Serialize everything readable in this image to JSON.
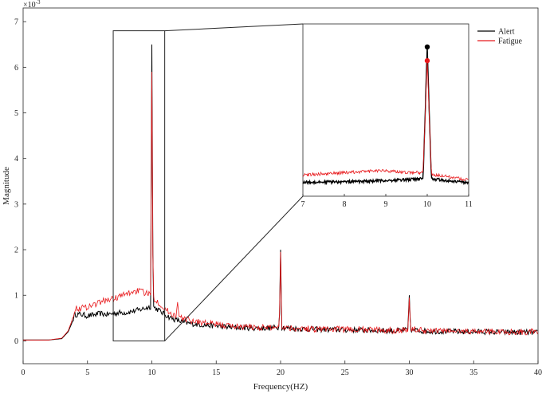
{
  "chart_data": {
    "type": "line",
    "xlabel": "Frequency(HZ)",
    "ylabel": "Magnitude",
    "exponent_label": "×10",
    "exponent_power": "-3",
    "xlim": [
      0,
      40
    ],
    "ylim": [
      -0.5,
      7.3
    ],
    "xticks": [
      0,
      5,
      10,
      15,
      20,
      25,
      30,
      35,
      40
    ],
    "yticks": [
      0,
      1,
      2,
      3,
      4,
      5,
      6,
      7
    ],
    "legend": {
      "placement": "top-right"
    },
    "grid": false,
    "series": [
      {
        "name": "Alert",
        "color": "#000000",
        "points": [
          [
            0,
            0.02
          ],
          [
            1,
            0.02
          ],
          [
            2,
            0.02
          ],
          [
            3,
            0.05
          ],
          [
            3.5,
            0.2
          ],
          [
            3.8,
            0.4
          ],
          [
            4.0,
            0.58
          ],
          [
            4.5,
            0.58
          ],
          [
            5,
            0.55
          ],
          [
            5.5,
            0.57
          ],
          [
            6,
            0.6
          ],
          [
            6.5,
            0.58
          ],
          [
            7,
            0.6
          ],
          [
            7.5,
            0.62
          ],
          [
            8,
            0.62
          ],
          [
            8.5,
            0.65
          ],
          [
            9,
            0.68
          ],
          [
            9.5,
            0.72
          ],
          [
            9.9,
            0.75
          ],
          [
            10.0,
            6.5
          ],
          [
            10.1,
            0.75
          ],
          [
            10.5,
            0.68
          ],
          [
            11,
            0.58
          ],
          [
            11.5,
            0.5
          ],
          [
            12,
            0.45
          ],
          [
            12.5,
            0.4
          ],
          [
            13,
            0.38
          ],
          [
            14,
            0.35
          ],
          [
            15,
            0.33
          ],
          [
            16,
            0.3
          ],
          [
            17,
            0.29
          ],
          [
            18,
            0.28
          ],
          [
            19,
            0.28
          ],
          [
            19.9,
            0.3
          ],
          [
            20.0,
            2.0
          ],
          [
            20.1,
            0.3
          ],
          [
            21,
            0.27
          ],
          [
            22,
            0.26
          ],
          [
            23,
            0.25
          ],
          [
            24,
            0.25
          ],
          [
            25,
            0.24
          ],
          [
            26,
            0.24
          ],
          [
            27,
            0.23
          ],
          [
            28,
            0.23
          ],
          [
            29,
            0.22
          ],
          [
            29.9,
            0.24
          ],
          [
            30.0,
            1.0
          ],
          [
            30.1,
            0.24
          ],
          [
            31,
            0.22
          ],
          [
            32,
            0.21
          ],
          [
            33,
            0.21
          ],
          [
            34,
            0.2
          ],
          [
            35,
            0.2
          ],
          [
            36,
            0.2
          ],
          [
            37,
            0.19
          ],
          [
            38,
            0.19
          ],
          [
            39,
            0.19
          ],
          [
            40,
            0.18
          ]
        ]
      },
      {
        "name": "Fatigue",
        "color": "#e8191c",
        "points": [
          [
            0,
            0.02
          ],
          [
            1,
            0.02
          ],
          [
            2,
            0.02
          ],
          [
            3,
            0.06
          ],
          [
            3.5,
            0.22
          ],
          [
            3.8,
            0.45
          ],
          [
            4.0,
            0.7
          ],
          [
            4.5,
            0.72
          ],
          [
            5,
            0.75
          ],
          [
            5.5,
            0.8
          ],
          [
            6,
            0.85
          ],
          [
            6.5,
            0.9
          ],
          [
            7,
            0.92
          ],
          [
            7.5,
            0.98
          ],
          [
            8,
            1.02
          ],
          [
            8.5,
            1.08
          ],
          [
            9,
            1.1
          ],
          [
            9.5,
            1.05
          ],
          [
            9.9,
            1.0
          ],
          [
            10.0,
            5.9
          ],
          [
            10.1,
            0.95
          ],
          [
            10.5,
            0.85
          ],
          [
            11,
            0.7
          ],
          [
            11.5,
            0.6
          ],
          [
            11.9,
            0.55
          ],
          [
            12.0,
            0.85
          ],
          [
            12.1,
            0.52
          ],
          [
            12.5,
            0.48
          ],
          [
            13,
            0.45
          ],
          [
            14,
            0.4
          ],
          [
            15,
            0.36
          ],
          [
            16,
            0.33
          ],
          [
            17,
            0.31
          ],
          [
            18,
            0.3
          ],
          [
            19,
            0.29
          ],
          [
            19.9,
            0.31
          ],
          [
            20.0,
            1.95
          ],
          [
            20.1,
            0.31
          ],
          [
            21,
            0.28
          ],
          [
            22,
            0.27
          ],
          [
            23,
            0.26
          ],
          [
            24,
            0.26
          ],
          [
            25,
            0.25
          ],
          [
            26,
            0.25
          ],
          [
            27,
            0.24
          ],
          [
            28,
            0.24
          ],
          [
            29,
            0.23
          ],
          [
            29.9,
            0.25
          ],
          [
            30.0,
            0.95
          ],
          [
            30.1,
            0.25
          ],
          [
            31,
            0.23
          ],
          [
            32,
            0.22
          ],
          [
            33,
            0.22
          ],
          [
            34,
            0.21
          ],
          [
            35,
            0.21
          ],
          [
            36,
            0.21
          ],
          [
            37,
            0.2
          ],
          [
            38,
            0.2
          ],
          [
            39,
            0.2
          ],
          [
            40,
            0.19
          ]
        ]
      }
    ],
    "inset": {
      "xlim": [
        7,
        11
      ],
      "xticks": [
        7,
        8,
        9,
        10,
        11
      ],
      "zoom_box": {
        "x": [
          7,
          11
        ],
        "y": [
          0,
          6.8
        ]
      },
      "alert_peak_marker": {
        "x": 10,
        "y": 6.5
      },
      "fatigue_peak_marker": {
        "x": 10,
        "y": 5.9
      }
    }
  }
}
